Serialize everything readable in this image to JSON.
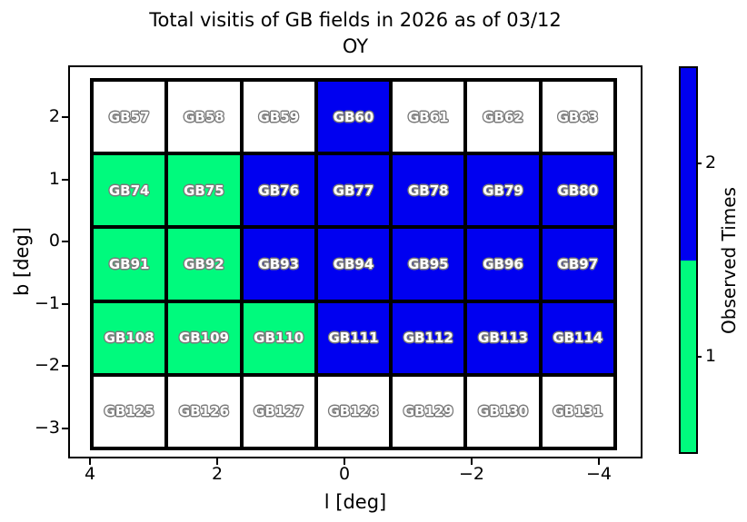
{
  "title": {
    "line1": "Total visitis of GB fields in 2026 as of 03/12",
    "line2": "OY"
  },
  "axes": {
    "xlabel": "l [deg]",
    "ylabel": "b [deg]",
    "x_ticks": [
      "4",
      "2",
      "0",
      "−2",
      "−4"
    ],
    "y_ticks": [
      "2",
      "1",
      "0",
      "−1",
      "−2",
      "−3"
    ]
  },
  "colorbar": {
    "label": "Observed Times",
    "tick_labels": [
      "2",
      "1"
    ],
    "segments": [
      {
        "value": 2,
        "color": "#0000F0"
      },
      {
        "value": 1,
        "color": "#00FA7D"
      }
    ]
  },
  "grid": {
    "value_colors": {
      "0": "#FFFFFF",
      "1": "#00FA7D",
      "2": "#0000F0"
    },
    "rows": [
      {
        "cells": [
          {
            "label": "GB57",
            "value": 0
          },
          {
            "label": "GB58",
            "value": 0
          },
          {
            "label": "GB59",
            "value": 0
          },
          {
            "label": "GB60",
            "value": 2
          },
          {
            "label": "GB61",
            "value": 0
          },
          {
            "label": "GB62",
            "value": 0
          },
          {
            "label": "GB63",
            "value": 0
          }
        ]
      },
      {
        "cells": [
          {
            "label": "GB74",
            "value": 1
          },
          {
            "label": "GB75",
            "value": 1
          },
          {
            "label": "GB76",
            "value": 2
          },
          {
            "label": "GB77",
            "value": 2
          },
          {
            "label": "GB78",
            "value": 2
          },
          {
            "label": "GB79",
            "value": 2
          },
          {
            "label": "GB80",
            "value": 2
          }
        ]
      },
      {
        "cells": [
          {
            "label": "GB91",
            "value": 1
          },
          {
            "label": "GB92",
            "value": 1
          },
          {
            "label": "GB93",
            "value": 2
          },
          {
            "label": "GB94",
            "value": 2
          },
          {
            "label": "GB95",
            "value": 2
          },
          {
            "label": "GB96",
            "value": 2
          },
          {
            "label": "GB97",
            "value": 2
          }
        ]
      },
      {
        "cells": [
          {
            "label": "GB108",
            "value": 1
          },
          {
            "label": "GB109",
            "value": 1
          },
          {
            "label": "GB110",
            "value": 1
          },
          {
            "label": "GB111",
            "value": 2
          },
          {
            "label": "GB112",
            "value": 2
          },
          {
            "label": "GB113",
            "value": 2
          },
          {
            "label": "GB114",
            "value": 2
          }
        ]
      },
      {
        "cells": [
          {
            "label": "GB125",
            "value": 0
          },
          {
            "label": "GB126",
            "value": 0
          },
          {
            "label": "GB127",
            "value": 0
          },
          {
            "label": "GB128",
            "value": 0
          },
          {
            "label": "GB129",
            "value": 0
          },
          {
            "label": "GB130",
            "value": 0
          },
          {
            "label": "GB131",
            "value": 0
          }
        ]
      }
    ]
  },
  "chart_data": {
    "type": "heatmap",
    "title": "Total visitis of GB fields in 2026 as of 03/12 OY",
    "xlabel": "l [deg]",
    "ylabel": "b [deg]",
    "x_tick_labels": [
      4,
      2,
      0,
      -2,
      -4
    ],
    "y_tick_labels": [
      2,
      1,
      0,
      -1,
      -2,
      -3
    ],
    "x_axis_inverted": true,
    "colorbar_label": "Observed Times",
    "colorbar_ticks": [
      2,
      1
    ],
    "color_scale": {
      "1": "#00FA7D",
      "2": "#0000F0",
      "unobserved": "#FFFFFF"
    },
    "rows": [
      {
        "fields": [
          "GB57",
          "GB58",
          "GB59",
          "GB60",
          "GB61",
          "GB62",
          "GB63"
        ],
        "observed_times": [
          0,
          0,
          0,
          2,
          0,
          0,
          0
        ]
      },
      {
        "fields": [
          "GB74",
          "GB75",
          "GB76",
          "GB77",
          "GB78",
          "GB79",
          "GB80"
        ],
        "observed_times": [
          1,
          1,
          2,
          2,
          2,
          2,
          2
        ]
      },
      {
        "fields": [
          "GB91",
          "GB92",
          "GB93",
          "GB94",
          "GB95",
          "GB96",
          "GB97"
        ],
        "observed_times": [
          1,
          1,
          2,
          2,
          2,
          2,
          2
        ]
      },
      {
        "fields": [
          "GB108",
          "GB109",
          "GB110",
          "GB111",
          "GB112",
          "GB113",
          "GB114"
        ],
        "observed_times": [
          1,
          1,
          1,
          2,
          2,
          2,
          2
        ]
      },
      {
        "fields": [
          "GB125",
          "GB126",
          "GB127",
          "GB128",
          "GB129",
          "GB130",
          "GB131"
        ],
        "observed_times": [
          0,
          0,
          0,
          0,
          0,
          0,
          0
        ]
      }
    ]
  }
}
